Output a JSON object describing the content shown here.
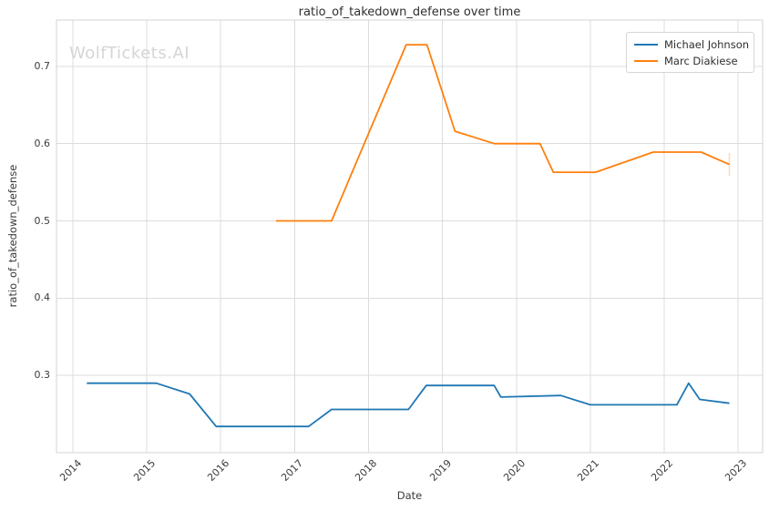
{
  "watermark": "WolfTickets.AI",
  "chart_data": {
    "type": "line",
    "title": "ratio_of_takedown_defense over time",
    "xlabel": "Date",
    "ylabel": "ratio_of_takedown_defense",
    "xlim": [
      2013.78,
      2023.33
    ],
    "ylim": [
      0.2,
      0.76
    ],
    "xticks": [
      2014,
      2015,
      2016,
      2017,
      2018,
      2019,
      2020,
      2021,
      2022,
      2023
    ],
    "yticks": [
      0.3,
      0.4,
      0.5,
      0.6,
      0.7
    ],
    "grid": true,
    "legend_position": "upper right",
    "series": [
      {
        "name": "Michael Johnson",
        "color": "#1f77b4",
        "x": [
          2014.19,
          2015.13,
          2015.58,
          2015.94,
          2017.19,
          2017.5,
          2018.54,
          2018.78,
          2019.7,
          2019.79,
          2020.6,
          2021.0,
          2022.17,
          2022.33,
          2022.48,
          2022.88
        ],
        "y": [
          0.29,
          0.29,
          0.276,
          0.234,
          0.234,
          0.256,
          0.256,
          0.287,
          0.287,
          0.272,
          0.274,
          0.262,
          0.262,
          0.29,
          0.269,
          0.264
        ]
      },
      {
        "name": "Marc Diakiese",
        "color": "#ff7f0e",
        "x": [
          2016.75,
          2017.5,
          2018.51,
          2018.79,
          2019.17,
          2019.7,
          2020.32,
          2020.5,
          2021.07,
          2021.85,
          2022.5,
          2022.88
        ],
        "y": [
          0.5,
          0.5,
          0.728,
          0.728,
          0.616,
          0.6,
          0.6,
          0.563,
          0.563,
          0.589,
          0.589,
          0.573
        ],
        "end_tick": {
          "x": 2022.88,
          "y_low": 0.558,
          "y_high": 0.588
        }
      }
    ],
    "colors": {
      "background": "#ffffff",
      "grid": "#dcdcdc",
      "spine": "#d3d3d3",
      "text": "#3b3b3b",
      "watermark": "#d5d5d5"
    }
  }
}
